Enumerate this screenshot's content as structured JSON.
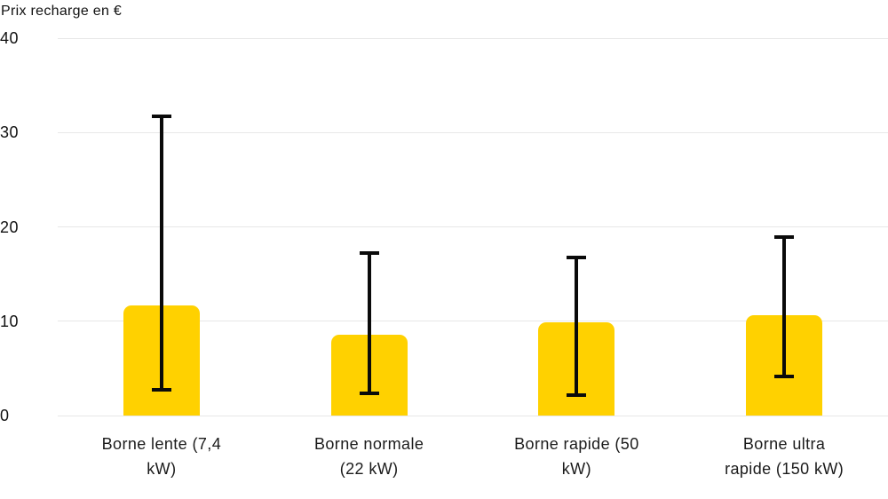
{
  "chart_data": {
    "type": "bar",
    "title": "Prix recharge en €",
    "categories": [
      "Borne lente (7,4 kW)",
      "Borne normale (22 kW)",
      "Borne rapide (50 kW)",
      "Borne ultra rapide (150 kW)"
    ],
    "category_lines": [
      [
        "Borne lente (7,4",
        "kW)"
      ],
      [
        "Borne normale",
        "(22 kW)"
      ],
      [
        "Borne rapide (50",
        "kW)"
      ],
      [
        "Borne ultra",
        "rapide (150 kW)"
      ]
    ],
    "values": [
      11.7,
      8.6,
      9.9,
      10.6
    ],
    "error_low": [
      2.5,
      2.2,
      2.0,
      4.0
    ],
    "error_high": [
      31.9,
      17.4,
      16.9,
      19.1
    ],
    "xlabel": "",
    "ylabel": "Prix recharge en €",
    "yticks": [
      0,
      10,
      20,
      30,
      40
    ],
    "ylim": [
      0,
      40
    ],
    "grid": true,
    "legend": "none",
    "bar_color": "#FFD100",
    "error_color": "#0a0a0a",
    "grid_color": "#e7e7e7",
    "text_color": "#111111",
    "background_color": "#ffffff"
  }
}
